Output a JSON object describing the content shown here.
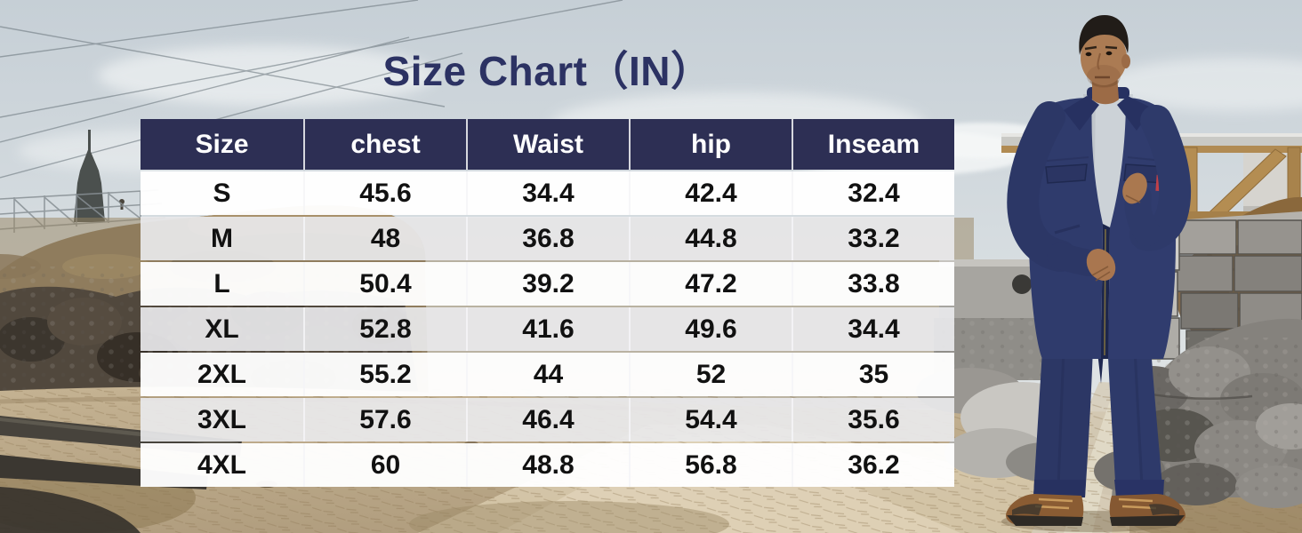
{
  "title": "Size Chart（IN）",
  "colors": {
    "title_text": "#2c3263",
    "header_bg": "#2d2f54",
    "header_text": "#ffffff",
    "row_default_bg": "#ffffff",
    "row_alt_bg": "#e9e9eb",
    "body_text": "#111111",
    "coverall_navy": "#2f3b6c",
    "pocket_tag_red": "#c14048"
  },
  "table": {
    "headers": [
      "Size",
      "chest",
      "Waist",
      "hip",
      "Inseam"
    ],
    "rows": [
      [
        "S",
        "45.6",
        "34.4",
        "42.4",
        "32.4"
      ],
      [
        "M",
        "48",
        "36.8",
        "44.8",
        "33.2"
      ],
      [
        "L",
        "50.4",
        "39.2",
        "47.2",
        "33.8"
      ],
      [
        "XL",
        "52.8",
        "41.6",
        "49.6",
        "34.4"
      ],
      [
        "2XL",
        "55.2",
        "44",
        "52",
        "35"
      ],
      [
        "3XL",
        "57.6",
        "46.4",
        "54.4",
        "35.6"
      ],
      [
        "4XL",
        "60",
        "48.8",
        "56.8",
        "36.2"
      ]
    ]
  },
  "chart_data": {
    "type": "table",
    "title": "Size Chart（IN）",
    "unit": "inches",
    "columns": [
      "Size",
      "chest",
      "Waist",
      "hip",
      "Inseam"
    ],
    "rows": [
      {
        "size": "S",
        "chest": 45.6,
        "waist": 34.4,
        "hip": 42.4,
        "inseam": 32.4
      },
      {
        "size": "M",
        "chest": 48,
        "waist": 36.8,
        "hip": 44.8,
        "inseam": 33.2
      },
      {
        "size": "L",
        "chest": 50.4,
        "waist": 39.2,
        "hip": 47.2,
        "inseam": 33.8
      },
      {
        "size": "XL",
        "chest": 52.8,
        "waist": 41.6,
        "hip": 49.6,
        "inseam": 34.4
      },
      {
        "size": "2XL",
        "chest": 55.2,
        "waist": 44,
        "hip": 52,
        "inseam": 35
      },
      {
        "size": "3XL",
        "chest": 57.6,
        "waist": 46.4,
        "hip": 54.4,
        "inseam": 35.6
      },
      {
        "size": "4XL",
        "chest": 60,
        "waist": 48.8,
        "hip": 56.8,
        "inseam": 36.2
      }
    ]
  }
}
